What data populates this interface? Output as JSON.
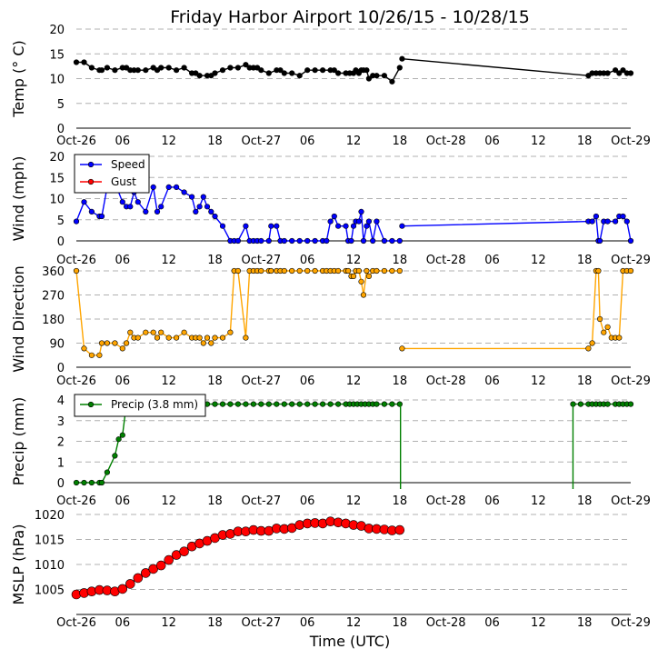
{
  "chart_data": {
    "title": "Friday Harbor Airport 10/26/15 - 10/28/15",
    "xlabel": "Time (UTC)",
    "x_unit": "hours since 2015-10-26 00:00 UTC",
    "x_range": [
      0,
      72
    ],
    "x_ticks": [
      {
        "x": 0,
        "label": "Oct-26"
      },
      {
        "x": 6,
        "label": "06"
      },
      {
        "x": 12,
        "label": "12"
      },
      {
        "x": 18,
        "label": "18"
      },
      {
        "x": 24,
        "label": "Oct-27"
      },
      {
        "x": 30,
        "label": "06"
      },
      {
        "x": 36,
        "label": "12"
      },
      {
        "x": 42,
        "label": "18"
      },
      {
        "x": 48,
        "label": "Oct-28"
      },
      {
        "x": 54,
        "label": "06"
      },
      {
        "x": 60,
        "label": "12"
      },
      {
        "x": 66,
        "label": "18"
      },
      {
        "x": 72,
        "label": "Oct-29"
      }
    ],
    "panels": [
      {
        "id": "temp",
        "type": "line",
        "ylabel": "Temp (° C)",
        "ylim": [
          0,
          20
        ],
        "yticks": [
          0,
          5,
          10,
          15,
          20
        ],
        "grid": true,
        "series": [
          {
            "name": "Temp",
            "color": "#000000",
            "marker_r": 2.8,
            "x": [
              0,
              1,
              2,
              3,
              3.3,
              4,
              5,
              6,
              6.5,
              7,
              7.5,
              8,
              9,
              10,
              10.5,
              11,
              12,
              13,
              14,
              15,
              15.5,
              16,
              17,
              17.5,
              18,
              19,
              20,
              21,
              22,
              22.5,
              23,
              23.5,
              24,
              25,
              26,
              26.5,
              27,
              28,
              29,
              30,
              31,
              32,
              33,
              33.5,
              34,
              35,
              35.5,
              36,
              36.3,
              36.7,
              37,
              37.3,
              37.7,
              38,
              38.5,
              39,
              40,
              41,
              42
            ],
            "y": [
              13.3,
              13.3,
              12.2,
              11.7,
              11.7,
              12.2,
              11.7,
              12.2,
              12.2,
              11.7,
              11.7,
              11.7,
              11.7,
              12.2,
              11.7,
              12.2,
              12.2,
              11.7,
              12.2,
              11.1,
              11.1,
              10.6,
              10.6,
              10.6,
              11.1,
              11.7,
              12.2,
              12.2,
              12.8,
              12.2,
              12.2,
              12.2,
              11.7,
              11.1,
              11.7,
              11.7,
              11.1,
              11.1,
              10.6,
              11.7,
              11.7,
              11.7,
              11.7,
              11.7,
              11.1,
              11.1,
              11.1,
              11.1,
              11.7,
              11.1,
              11.7,
              11.7,
              11.7,
              10.0,
              10.6,
              10.6,
              10.6,
              9.4,
              12.2
            ]
          },
          {
            "name": "Temp (later)",
            "color": "#000000",
            "marker_r": 2.8,
            "x": [
              42.3,
              66.5,
              67,
              67.5,
              68,
              68.5,
              69,
              70,
              70.5,
              71,
              71.5,
              72
            ],
            "y": [
              14.0,
              10.6,
              11.1,
              11.1,
              11.1,
              11.1,
              11.1,
              11.7,
              11.1,
              11.7,
              11.1,
              11.1
            ]
          }
        ],
        "legend": null
      },
      {
        "id": "wind",
        "type": "line",
        "ylabel": "Wind (mph)",
        "ylim": [
          0,
          20
        ],
        "yticks": [
          0,
          5,
          10,
          15,
          20
        ],
        "grid": true,
        "legend": {
          "placement": "top-left",
          "entries": [
            "Speed",
            "Gust"
          ]
        },
        "series": [
          {
            "name": "Speed",
            "color": "#0000ff",
            "marker_r": 2.8,
            "x": [
              0,
              1,
              2,
              3,
              3.3,
              4,
              5,
              6,
              6.5,
              7,
              7.5,
              8,
              9,
              10,
              10.5,
              11,
              12,
              13,
              14,
              15,
              15.5,
              16,
              16.5,
              17,
              17.5,
              18,
              19,
              20,
              20.5,
              21,
              22,
              22.5,
              23,
              23.5,
              24,
              25,
              25.3,
              26,
              26.5,
              27,
              28,
              29,
              30,
              31,
              32,
              32.5,
              33,
              33.5,
              34,
              35,
              35.3,
              35.7,
              36,
              36.3,
              36.7,
              37,
              37.3,
              37.7,
              38,
              38.5,
              39,
              40,
              41,
              42
            ],
            "y": [
              4.6,
              9.2,
              6.9,
              5.8,
              5.8,
              12.7,
              13.8,
              9.2,
              8.1,
              8.1,
              11.5,
              9.2,
              6.9,
              12.7,
              6.9,
              8.1,
              12.7,
              12.7,
              11.5,
              10.4,
              6.9,
              8.1,
              10.4,
              8.1,
              6.9,
              5.8,
              3.5,
              0,
              0,
              0,
              3.5,
              0,
              0,
              0,
              0,
              0,
              3.5,
              3.5,
              0,
              0,
              0,
              0,
              0,
              0,
              0,
              0,
              4.6,
              5.8,
              3.5,
              3.5,
              0,
              0,
              3.5,
              4.6,
              4.6,
              6.9,
              0,
              3.5,
              4.6,
              0,
              4.6,
              0,
              0,
              0
            ]
          },
          {
            "name": "Speed (later)",
            "color": "#0000ff",
            "marker_r": 2.8,
            "x": [
              42.3,
              66.5,
              67,
              67.5,
              67.8,
              68,
              68.5,
              69,
              70,
              70.5,
              71,
              71.5,
              72
            ],
            "y": [
              3.5,
              4.6,
              4.6,
              5.8,
              0,
              0,
              4.6,
              4.6,
              4.6,
              5.8,
              5.8,
              4.6,
              0
            ]
          },
          {
            "name": "Gust",
            "color": "#ff0000",
            "marker_r": 2.8,
            "x": [],
            "y": []
          }
        ]
      },
      {
        "id": "wdir",
        "type": "line",
        "ylabel": "Wind Direction",
        "ylim": [
          0,
          360
        ],
        "yticks": [
          0,
          90,
          180,
          270,
          360
        ],
        "grid": true,
        "legend": null,
        "series": [
          {
            "name": "Direction",
            "color": "#ffa500",
            "marker_r": 2.8,
            "x": [
              0,
              1,
              2,
              3,
              3.3,
              4,
              5,
              6,
              6.5,
              7,
              7.5,
              8,
              9,
              10,
              10.5,
              11,
              12,
              13,
              14,
              15,
              15.5,
              16,
              16.5,
              17,
              17.5,
              18,
              19,
              20,
              20.5,
              21,
              22,
              22.5,
              23,
              23.5,
              24,
              25,
              25.3,
              26,
              26.5,
              27,
              28,
              29,
              30,
              31,
              32,
              32.5,
              33,
              33.5,
              34,
              35,
              35.3,
              35.7,
              36,
              36.3,
              36.7,
              37,
              37.3,
              37.7,
              38,
              38.5,
              39,
              40,
              41,
              42
            ],
            "y": [
              360,
              70,
              45,
              45,
              90,
              90,
              90,
              70,
              90,
              130,
              110,
              110,
              130,
              130,
              110,
              130,
              110,
              110,
              130,
              110,
              110,
              110,
              90,
              110,
              90,
              110,
              110,
              130,
              360,
              360,
              110,
              360,
              360,
              360,
              360,
              360,
              360,
              360,
              360,
              360,
              360,
              360,
              360,
              360,
              360,
              360,
              360,
              360,
              360,
              360,
              360,
              340,
              340,
              360,
              360,
              320,
              270,
              360,
              340,
              360,
              360,
              360,
              360,
              360
            ]
          },
          {
            "name": "Direction (later)",
            "color": "#ffa500",
            "marker_r": 2.8,
            "x": [
              42.3,
              66.5,
              67,
              67.5,
              67.8,
              68,
              68.5,
              69,
              69.5,
              70,
              70.5,
              71,
              71.5,
              72
            ],
            "y": [
              70,
              70,
              90,
              360,
              360,
              180,
              130,
              150,
              110,
              110,
              110,
              360,
              360,
              360
            ]
          }
        ]
      },
      {
        "id": "precip",
        "type": "line",
        "ylabel": "Precip (mm)",
        "ylim": [
          0,
          4
        ],
        "yticks": [
          0,
          1,
          2,
          3,
          4
        ],
        "grid": true,
        "legend": {
          "placement": "top-left",
          "entries": [
            "Precip (3.8 mm)"
          ]
        },
        "series": [
          {
            "name": "Precip (3.8 mm)",
            "color": "#008000",
            "marker_r": 2.8,
            "x": [
              0,
              1,
              2,
              3,
              3.3,
              4,
              5,
              5.5,
              6,
              6.5,
              7,
              8,
              9,
              10,
              11,
              12,
              13,
              14,
              15,
              16,
              17,
              18,
              19,
              20,
              21,
              22,
              23,
              24,
              25,
              26,
              27,
              28,
              29,
              30,
              31,
              32,
              33,
              34,
              35,
              35.5,
              36,
              36.5,
              37,
              37.5,
              38,
              38.5,
              39,
              40,
              41,
              42
            ],
            "y": [
              0,
              0,
              0,
              0,
              0,
              0.5,
              1.3,
              2.1,
              2.3,
              3.8,
              3.8,
              3.8,
              3.8,
              3.8,
              3.8,
              3.8,
              3.8,
              3.8,
              3.8,
              3.8,
              3.8,
              3.8,
              3.8,
              3.8,
              3.8,
              3.8,
              3.8,
              3.8,
              3.8,
              3.8,
              3.8,
              3.8,
              3.8,
              3.8,
              3.8,
              3.8,
              3.8,
              3.8,
              3.8,
              3.8,
              3.8,
              3.8,
              3.8,
              3.8,
              3.8,
              3.8,
              3.8,
              3.8,
              3.8,
              3.8
            ]
          },
          {
            "name": "Precip (later)",
            "color": "#008000",
            "marker_r": 2.8,
            "x": [
              64.5,
              65.5,
              66.5,
              67,
              67.5,
              68,
              68.5,
              69,
              70,
              70.5,
              71,
              71.5,
              72
            ],
            "y": [
              3.8,
              3.8,
              3.8,
              3.8,
              3.8,
              3.8,
              3.8,
              3.8,
              3.8,
              3.8,
              3.8,
              3.8,
              3.8
            ]
          }
        ]
      },
      {
        "id": "mslp",
        "type": "line",
        "ylabel": "MSLP (hPa)",
        "ylim": [
          1000,
          1020
        ],
        "yticks": [
          1005,
          1010,
          1015,
          1020
        ],
        "grid": true,
        "legend": null,
        "series": [
          {
            "name": "MSLP",
            "color": "#ff0000",
            "marker_r": 5,
            "x": [
              0,
              1,
              2,
              3,
              4,
              5,
              6,
              7,
              8,
              9,
              10,
              11,
              12,
              13,
              14,
              15,
              16,
              17,
              18,
              19,
              20,
              21,
              22,
              23,
              24,
              25,
              26,
              27,
              28,
              29,
              30,
              31,
              32,
              33,
              34,
              35,
              36,
              37,
              38,
              39,
              40,
              41,
              42
            ],
            "y": [
              1004,
              1004.3,
              1004.6,
              1004.9,
              1004.8,
              1004.6,
              1005.1,
              1006.1,
              1007.3,
              1008.3,
              1009.1,
              1009.8,
              1010.9,
              1011.9,
              1012.6,
              1013.6,
              1014.2,
              1014.7,
              1015.3,
              1015.9,
              1016.1,
              1016.6,
              1016.6,
              1016.9,
              1016.7,
              1016.7,
              1017.2,
              1017.1,
              1017.3,
              1017.9,
              1018.2,
              1018.3,
              1018.2,
              1018.6,
              1018.4,
              1018.2,
              1017.9,
              1017.7,
              1017.2,
              1017.1,
              1017.0,
              1016.8,
              1016.9
            ]
          }
        ]
      }
    ]
  }
}
